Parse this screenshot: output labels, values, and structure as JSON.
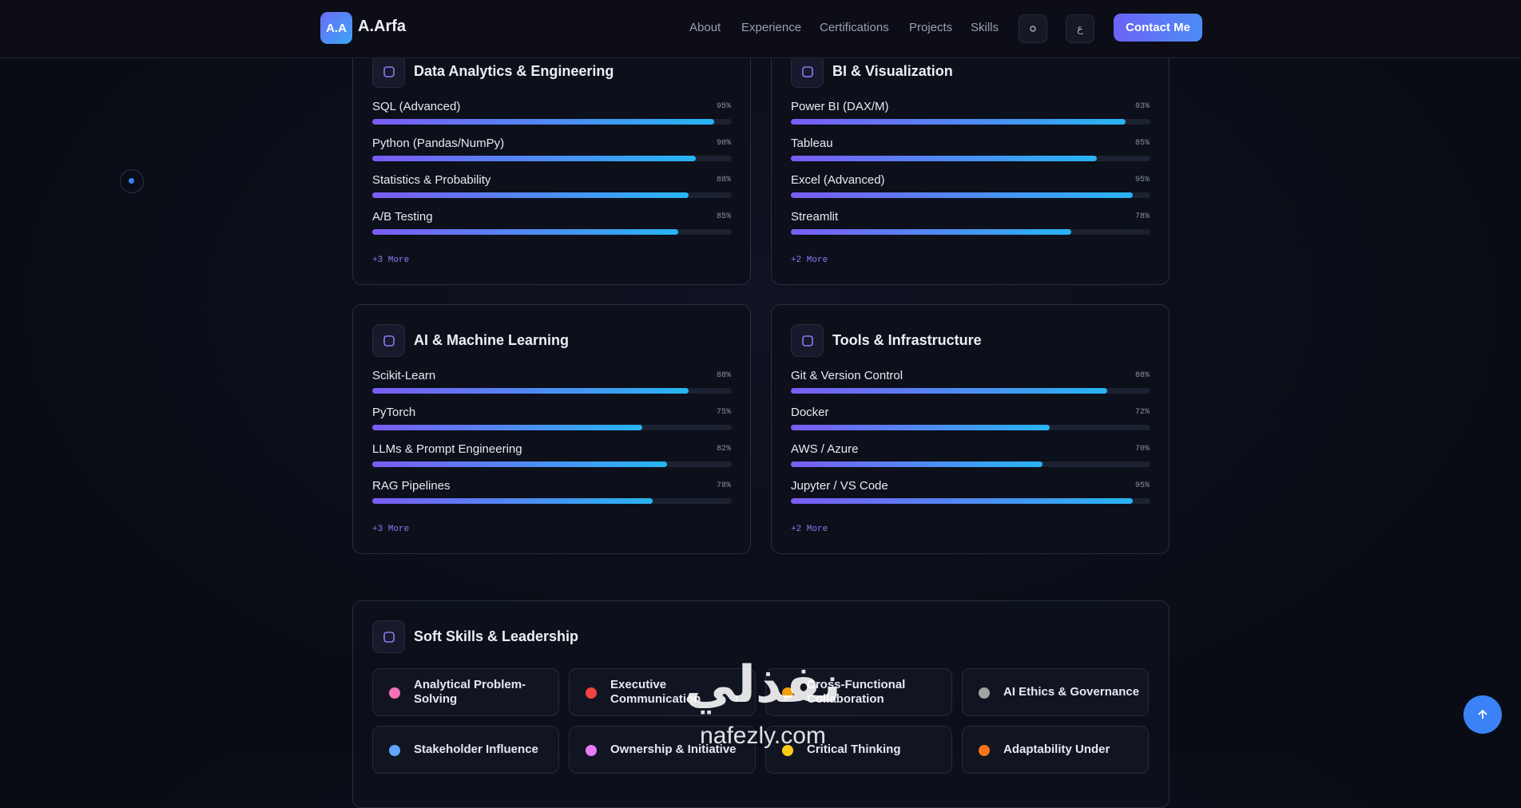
{
  "nav": {
    "logo": "A.A",
    "brand": "A.Arfa",
    "links": [
      "About",
      "Experience",
      "Certifications",
      "Projects",
      "Skills"
    ],
    "lang": "ع",
    "cta": "Contact Me"
  },
  "skill_groups": [
    {
      "title": "Data Analytics & Engineering",
      "more": "+3 More",
      "skills": [
        {
          "name": "SQL (Advanced)",
          "value": 95,
          "label": "95%"
        },
        {
          "name": "Python (Pandas/NumPy)",
          "value": 90,
          "label": "90%"
        },
        {
          "name": "Statistics & Probability",
          "value": 88,
          "label": "88%"
        },
        {
          "name": "A/B Testing",
          "value": 85,
          "label": "85%"
        }
      ]
    },
    {
      "title": "BI & Visualization",
      "more": "+2 More",
      "skills": [
        {
          "name": "Power BI (DAX/M)",
          "value": 93,
          "label": "93%"
        },
        {
          "name": "Tableau",
          "value": 85,
          "label": "85%"
        },
        {
          "name": "Excel (Advanced)",
          "value": 95,
          "label": "95%"
        },
        {
          "name": "Streamlit",
          "value": 78,
          "label": "78%"
        }
      ]
    },
    {
      "title": "AI & Machine Learning",
      "more": "+3 More",
      "skills": [
        {
          "name": "Scikit-Learn",
          "value": 88,
          "label": "88%"
        },
        {
          "name": "PyTorch",
          "value": 75,
          "label": "75%"
        },
        {
          "name": "LLMs & Prompt Engineering",
          "value": 82,
          "label": "82%"
        },
        {
          "name": "RAG Pipelines",
          "value": 78,
          "label": "78%"
        }
      ]
    },
    {
      "title": "Tools & Infrastructure",
      "more": "+2 More",
      "skills": [
        {
          "name": "Git & Version Control",
          "value": 88,
          "label": "88%"
        },
        {
          "name": "Docker",
          "value": 72,
          "label": "72%"
        },
        {
          "name": "AWS / Azure",
          "value": 70,
          "label": "70%"
        },
        {
          "name": "Jupyter / VS Code",
          "value": 95,
          "label": "95%"
        }
      ]
    }
  ],
  "soft_skills": {
    "title": "Soft Skills & Leadership",
    "items": [
      "Analytical Problem-Solving",
      "Executive Communication",
      "Cross-Functional Collaboration",
      "AI Ethics & Governance",
      "Stakeholder Influence",
      "Ownership & Initiative",
      "Critical Thinking",
      "Adaptability Under"
    ]
  },
  "watermark": {
    "arabic": "نفذلي",
    "latin": "nafezly.com"
  }
}
